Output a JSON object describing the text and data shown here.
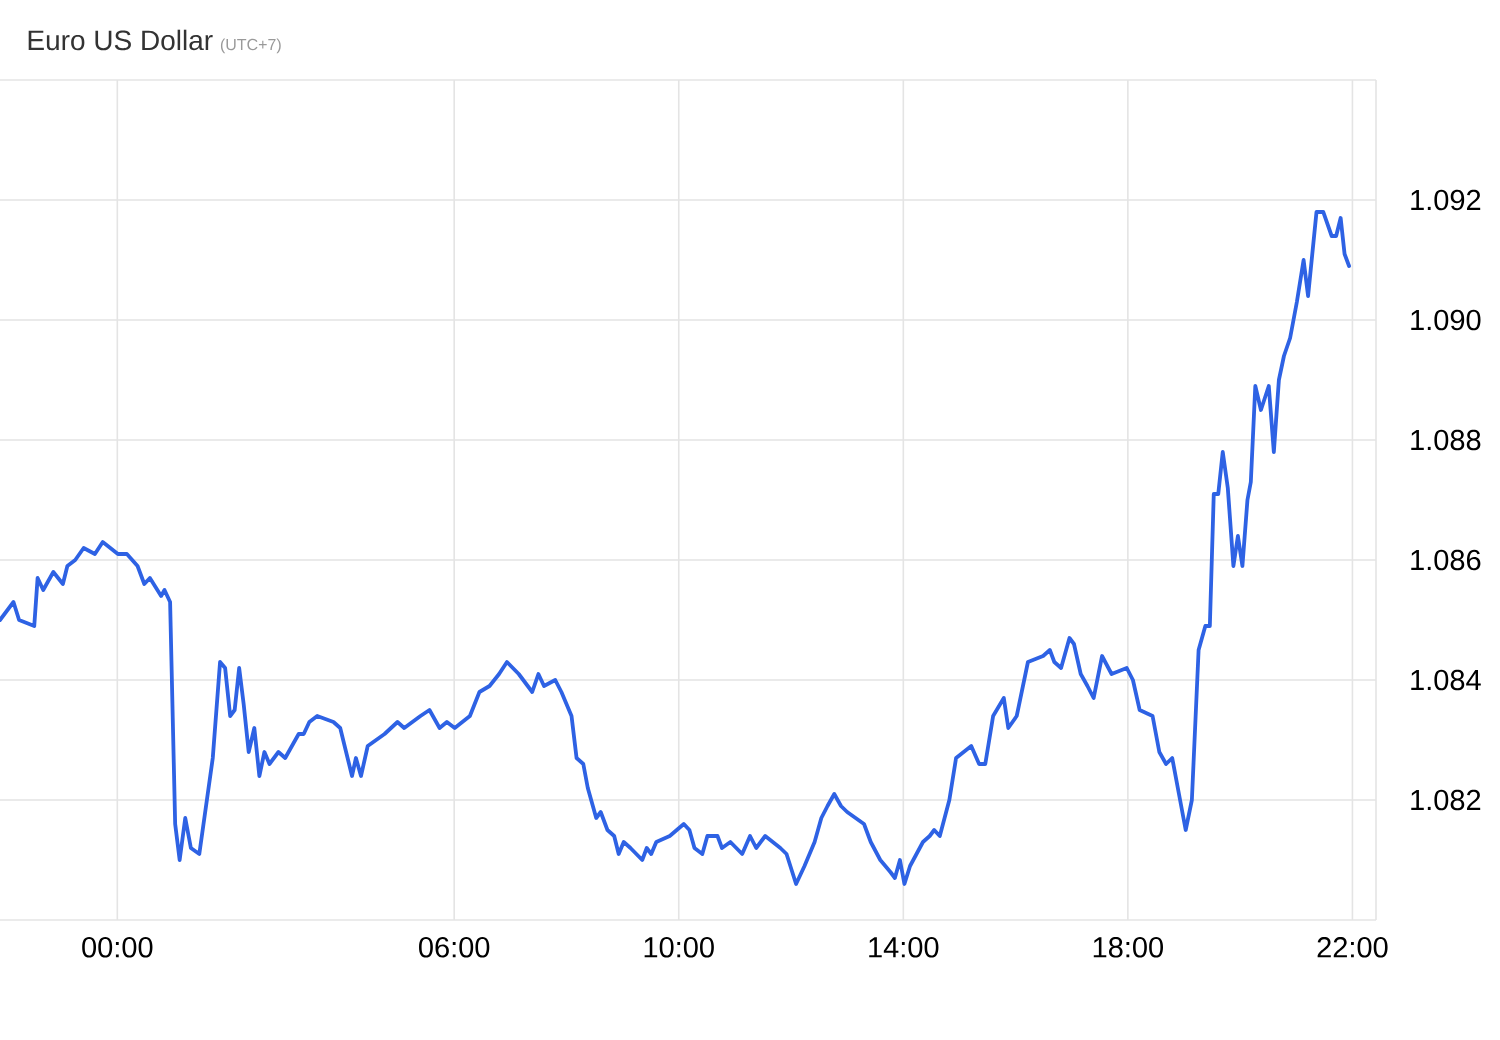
{
  "chart_data": {
    "type": "line",
    "title": "Euro US Dollar",
    "subtitle": "(UTC+7)",
    "x": [
      -2.09,
      -1.85,
      -1.75,
      -1.48,
      -1.42,
      -1.32,
      -1.14,
      -0.97,
      -0.89,
      -0.75,
      -0.6,
      -0.4,
      -0.26,
      0.01,
      0.17,
      0.36,
      0.48,
      0.58,
      0.78,
      0.84,
      0.94,
      1.03,
      1.11,
      1.21,
      1.31,
      1.46,
      1.7,
      1.83,
      1.92,
      2.01,
      2.09,
      2.17,
      2.25,
      2.34,
      2.44,
      2.53,
      2.62,
      2.71,
      2.87,
      2.99,
      3.23,
      3.32,
      3.42,
      3.56,
      3.85,
      3.97,
      4.18,
      4.25,
      4.34,
      4.46,
      4.76,
      4.99,
      5.11,
      5.4,
      5.56,
      5.74,
      5.87,
      6.01,
      6.28,
      6.45,
      6.63,
      6.8,
      6.94,
      7.15,
      7.39,
      7.5,
      7.6,
      7.8,
      7.91,
      8.09,
      8.18,
      8.3,
      8.38,
      8.53,
      8.61,
      8.73,
      8.85,
      8.93,
      9.02,
      9.14,
      9.35,
      9.43,
      9.51,
      9.6,
      9.84,
      10.09,
      10.19,
      10.28,
      10.42,
      10.51,
      10.69,
      10.77,
      10.92,
      11.13,
      11.27,
      11.38,
      11.54,
      11.81,
      11.92,
      12.09,
      12.24,
      12.42,
      12.54,
      12.65,
      12.77,
      12.89,
      13.0,
      13.3,
      13.42,
      13.59,
      13.77,
      13.85,
      13.94,
      14.02,
      14.12,
      14.35,
      14.47,
      14.55,
      14.65,
      14.82,
      14.94,
      15.21,
      15.35,
      15.46,
      15.6,
      15.79,
      15.87,
      16.02,
      16.22,
      16.49,
      16.61,
      16.69,
      16.81,
      16.96,
      17.04,
      17.16,
      17.28,
      17.39,
      17.54,
      17.71,
      17.98,
      18.09,
      18.21,
      18.44,
      18.56,
      18.68,
      18.79,
      18.91,
      19.03,
      19.14,
      19.26,
      19.38,
      19.46,
      19.53,
      19.61,
      19.69,
      19.78,
      19.88,
      19.96,
      20.04,
      20.13,
      20.19,
      20.27,
      20.37,
      20.51,
      20.6,
      20.69,
      20.78,
      20.89,
      21.01,
      21.13,
      21.21,
      21.36,
      21.48,
      21.63,
      21.71,
      21.79,
      21.86,
      21.94
    ],
    "values": [
      1.085,
      1.0853,
      1.085,
      1.0849,
      1.0857,
      1.0855,
      1.0858,
      1.0856,
      1.0859,
      1.086,
      1.0862,
      1.0861,
      1.0863,
      1.0861,
      1.0861,
      1.0859,
      1.0856,
      1.0857,
      1.0854,
      1.0855,
      1.0853,
      1.0816,
      1.081,
      1.0817,
      1.0812,
      1.0811,
      1.0827,
      1.0843,
      1.0842,
      1.0834,
      1.0835,
      1.0842,
      1.0836,
      1.0828,
      1.0832,
      1.0824,
      1.0828,
      1.0826,
      1.0828,
      1.0827,
      1.0831,
      1.0831,
      1.0833,
      1.0834,
      1.0833,
      1.0832,
      1.0824,
      1.0827,
      1.0824,
      1.0829,
      1.0831,
      1.0833,
      1.0832,
      1.0834,
      1.0835,
      1.0832,
      1.0833,
      1.0832,
      1.0834,
      1.0838,
      1.0839,
      1.0841,
      1.0843,
      1.0841,
      1.0838,
      1.0841,
      1.0839,
      1.084,
      1.0838,
      1.0834,
      1.0827,
      1.0826,
      1.0822,
      1.0817,
      1.0818,
      1.0815,
      1.0814,
      1.0811,
      1.0813,
      1.0812,
      1.081,
      1.0812,
      1.0811,
      1.0813,
      1.0814,
      1.0816,
      1.0815,
      1.0812,
      1.0811,
      1.0814,
      1.0814,
      1.0812,
      1.0813,
      1.0811,
      1.0814,
      1.0812,
      1.0814,
      1.0812,
      1.0811,
      1.0806,
      1.0809,
      1.0813,
      1.0817,
      1.0819,
      1.0821,
      1.0819,
      1.0818,
      1.0816,
      1.0813,
      1.081,
      1.0808,
      1.0807,
      1.081,
      1.0806,
      1.0809,
      1.0813,
      1.0814,
      1.0815,
      1.0814,
      1.082,
      1.0827,
      1.0829,
      1.0826,
      1.0826,
      1.0834,
      1.0837,
      1.0832,
      1.0834,
      1.0843,
      1.0844,
      1.0845,
      1.0843,
      1.0842,
      1.0847,
      1.0846,
      1.0841,
      1.0839,
      1.0837,
      1.0844,
      1.0841,
      1.0842,
      1.084,
      1.0835,
      1.0834,
      1.0828,
      1.0826,
      1.0827,
      1.0821,
      1.0815,
      1.082,
      1.0845,
      1.0849,
      1.0849,
      1.0871,
      1.0871,
      1.0878,
      1.0872,
      1.0859,
      1.0864,
      1.0859,
      1.087,
      1.0873,
      1.0889,
      1.0885,
      1.0889,
      1.0878,
      1.089,
      1.0894,
      1.0897,
      1.0903,
      1.091,
      1.0904,
      1.0918,
      1.0918,
      1.0914,
      1.0914,
      1.0917,
      1.0911,
      1.0909
    ],
    "color": "#2e62e4",
    "xlim": [
      -2.09,
      22.42
    ],
    "xticks": [
      {
        "value": 0,
        "label": "00:00"
      },
      {
        "value": 6,
        "label": "06:00"
      },
      {
        "value": 10,
        "label": "10:00"
      },
      {
        "value": 14,
        "label": "14:00"
      },
      {
        "value": 18,
        "label": "18:00"
      },
      {
        "value": 22,
        "label": "22:00"
      }
    ],
    "ylim": [
      1.08,
      1.094
    ],
    "yticks": [
      1.082,
      1.084,
      1.086,
      1.088,
      {
        "value": 1.09,
        "label": "1.090"
      },
      1.092
    ],
    "grid": true
  }
}
